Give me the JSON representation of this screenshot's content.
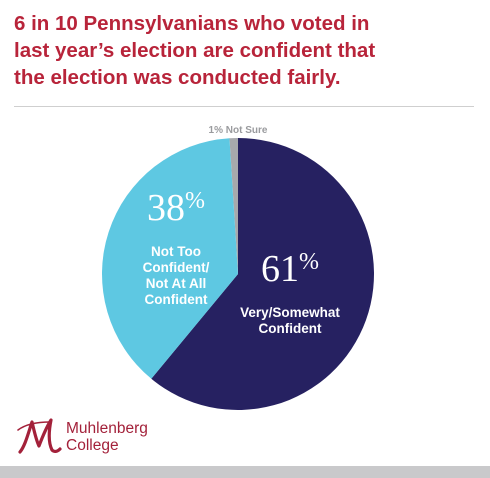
{
  "headline": {
    "lines": [
      "6 in 10 Pennsylvanians who voted in",
      "last year’s election are confident that",
      "the election was conducted fairly."
    ]
  },
  "colors": {
    "headline": "#b8243a",
    "brand": "#a3213a",
    "confident": "#262161",
    "not_confident": "#5ec8e2",
    "not_sure": "#a7a9ac",
    "rule": "#cfcfcf",
    "footer_bar": "#c9c9cb"
  },
  "chart_data": {
    "type": "pie",
    "title": "",
    "slices": [
      {
        "label": "Very/Somewhat Confident",
        "value": 61,
        "display": "61%",
        "label_lines": [
          "Very/Somewhat",
          "Confident"
        ],
        "color": "#262161"
      },
      {
        "label": "Not Too Confident/ Not At All Confident",
        "value": 38,
        "display": "38%",
        "label_lines": [
          "Not Too",
          "Confident/",
          "Not At All",
          "Confident"
        ],
        "color": "#5ec8e2"
      },
      {
        "label": "Not Sure",
        "value": 1,
        "display": "1%",
        "label_lines": [
          "Not Sure"
        ],
        "color": "#a7a9ac"
      }
    ],
    "not_sure_annotation": "1% Not Sure"
  },
  "logo": {
    "line1": "Muhlenberg",
    "line2": "College"
  }
}
